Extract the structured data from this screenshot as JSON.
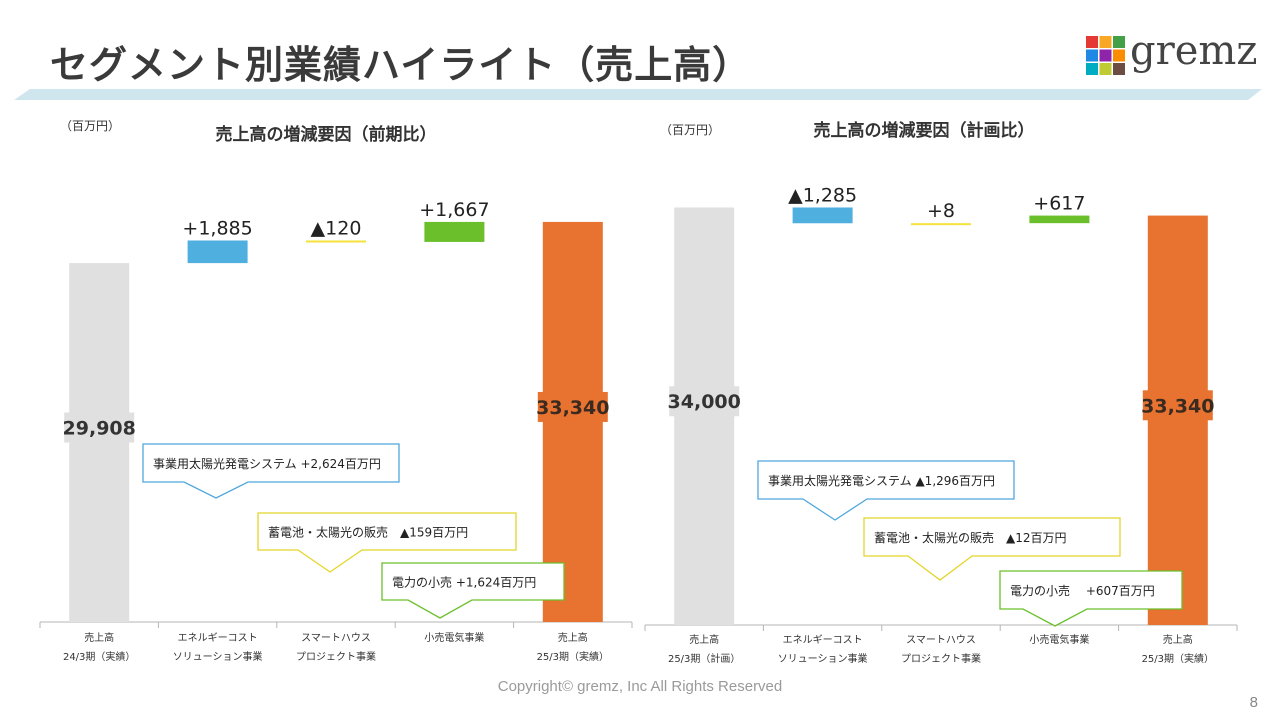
{
  "title": "セグメント別業績ハイライト（売上高）",
  "logo": {
    "text": "gremz",
    "colors": [
      "#e53935",
      "#f9a825",
      "#43a047",
      "#1e88e5",
      "#8e24aa",
      "#fb8c00",
      "#00acc1",
      "#c0ca33",
      "#6d4c41"
    ]
  },
  "footer": "Copyright© gremz, Inc All Rights Reserved",
  "page_number": "8",
  "chart_data": [
    {
      "type": "waterfall",
      "title": "売上高の増減要因（前期比）",
      "unit": "（百万円）",
      "categories": [
        [
          "売上高",
          "24/3期（実績）"
        ],
        [
          "エネルギーコスト",
          "ソリューション事業"
        ],
        [
          "スマートハウス",
          "プロジェクト事業"
        ],
        [
          "小売電気事業"
        ],
        [
          "売上高",
          "25/3期（実績）"
        ]
      ],
      "ylim": [
        0,
        36000
      ],
      "bars": [
        {
          "kind": "total",
          "value": 29908,
          "label": "29,908",
          "color": "#e0e0e0",
          "label_bg": "#e0e0e0",
          "label_color": "#333333"
        },
        {
          "kind": "delta",
          "value": 1885,
          "label": "+1,885",
          "color": "#4fb0e0"
        },
        {
          "kind": "delta",
          "value": -120,
          "label": "▲120",
          "color": "#f5e23a"
        },
        {
          "kind": "delta",
          "value": 1667,
          "label": "+1,667",
          "color": "#6abf2a"
        },
        {
          "kind": "total",
          "value": 33340,
          "label": "33,340",
          "color": "#e87330",
          "label_bg": "#e87330",
          "label_color": "#3a2a20"
        }
      ],
      "callouts": [
        {
          "text": "事業用太陽光発電システム  +2,624百万円",
          "border": "#4fa8dc"
        },
        {
          "text": "蓄電池・太陽光の販売　▲159百万円",
          "border": "#e3d52a"
        },
        {
          "text": "電力の小売  +1,624百万円",
          "border": "#6abf2a"
        }
      ]
    },
    {
      "type": "waterfall",
      "title": "売上高の増減要因（計画比）",
      "unit": "（百万円）",
      "categories": [
        [
          "売上高",
          "25/3期（計画）"
        ],
        [
          "エネルギーコスト",
          "ソリューション事業"
        ],
        [
          "スマートハウス",
          "プロジェクト事業"
        ],
        [
          "小売電気事業"
        ],
        [
          "売上高",
          "25/3期（実績）"
        ]
      ],
      "ylim": [
        0,
        36000
      ],
      "bars": [
        {
          "kind": "total",
          "value": 34000,
          "label": "34,000",
          "color": "#e0e0e0",
          "label_bg": "#e0e0e0",
          "label_color": "#333333"
        },
        {
          "kind": "delta",
          "value": -1285,
          "label": "▲1,285",
          "color": "#4fb0e0"
        },
        {
          "kind": "delta",
          "value": 8,
          "label": "+8",
          "color": "#f5e23a"
        },
        {
          "kind": "delta",
          "value": 617,
          "label": "+617",
          "color": "#6abf2a"
        },
        {
          "kind": "total",
          "value": 33340,
          "label": "33,340",
          "color": "#e87330",
          "label_bg": "#e87330",
          "label_color": "#3a2a20"
        }
      ],
      "callouts": [
        {
          "text": "事業用太陽光発電システム  ▲1,296百万円",
          "border": "#4fa8dc"
        },
        {
          "text": "蓄電池・太陽光の販売　▲12百万円",
          "border": "#e3d52a"
        },
        {
          "text": "電力の小売　 +607百万円",
          "border": "#6abf2a"
        }
      ]
    }
  ]
}
